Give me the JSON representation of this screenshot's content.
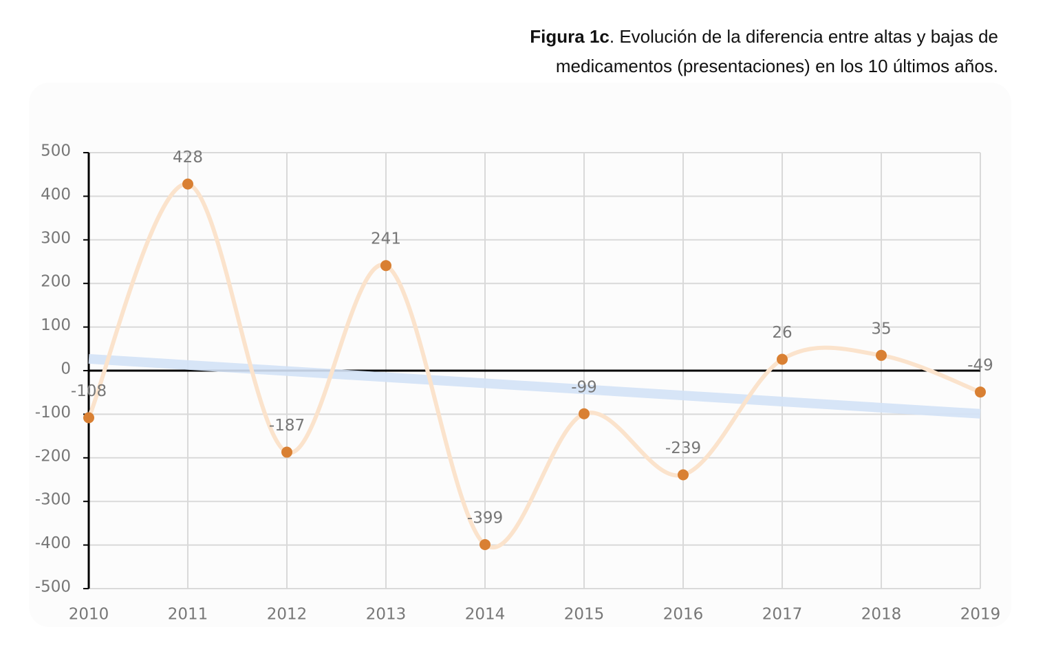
{
  "chart_data": {
    "type": "line",
    "title_label": "Figura 1c",
    "title": ". Evolución de la diferencia entre altas y bajas de medicamentos (presentaciones) en los 10 últimos años.",
    "categories": [
      "2010",
      "2011",
      "2012",
      "2013",
      "2014",
      "2015",
      "2016",
      "2017",
      "2018",
      "2019"
    ],
    "values": [
      -108,
      428,
      -187,
      241,
      -399,
      -99,
      -239,
      26,
      35,
      -49
    ],
    "color": "#d98033",
    "line_color": "#fbe3cc",
    "smooth": true,
    "trendline": {
      "values": [
        27,
        -99
      ],
      "color": "#d4e3f7"
    },
    "ylim": [
      -500,
      500
    ],
    "yticks": [
      -500,
      -400,
      -300,
      -200,
      -100,
      0,
      100,
      200,
      300,
      400,
      500
    ],
    "grid": true
  }
}
